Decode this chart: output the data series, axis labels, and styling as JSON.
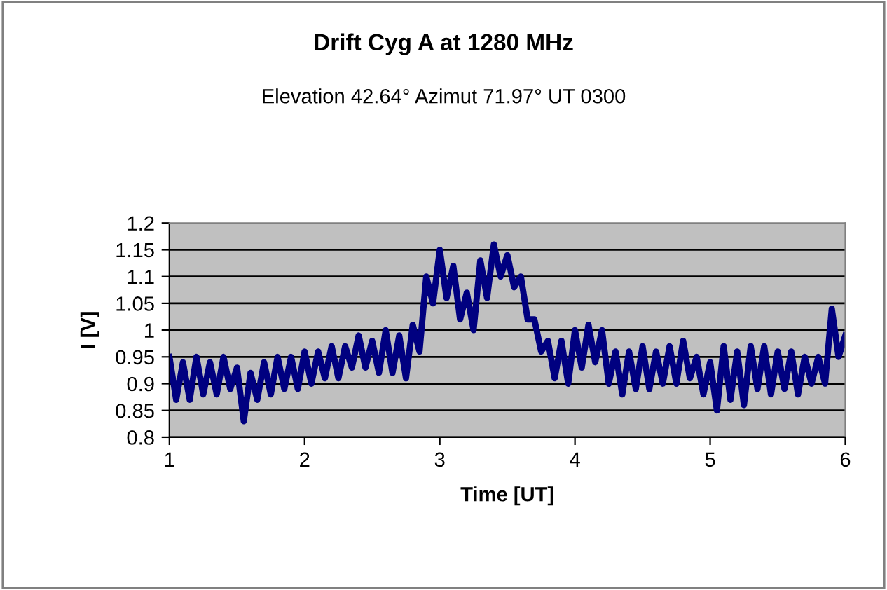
{
  "chart_data": {
    "type": "line",
    "title": "Drift Cyg A at 1280 MHz",
    "subtitle": "Elevation 42.64° Azimut 71.97° UT 0300",
    "xlabel": "Time [UT]",
    "ylabel": "I [V]",
    "x": [
      1.0,
      1.05,
      1.1,
      1.15,
      1.2,
      1.25,
      1.3,
      1.35,
      1.4,
      1.45,
      1.5,
      1.55,
      1.6,
      1.65,
      1.7,
      1.75,
      1.8,
      1.85,
      1.9,
      1.95,
      2.0,
      2.05,
      2.1,
      2.15,
      2.2,
      2.25,
      2.3,
      2.35,
      2.4,
      2.45,
      2.5,
      2.55,
      2.6,
      2.65,
      2.7,
      2.75,
      2.8,
      2.85,
      2.9,
      2.95,
      3.0,
      3.05,
      3.1,
      3.15,
      3.2,
      3.25,
      3.3,
      3.35,
      3.4,
      3.45,
      3.5,
      3.55,
      3.6,
      3.65,
      3.7,
      3.75,
      3.8,
      3.85,
      3.9,
      3.95,
      4.0,
      4.05,
      4.1,
      4.15,
      4.2,
      4.25,
      4.3,
      4.35,
      4.4,
      4.45,
      4.5,
      4.55,
      4.6,
      4.65,
      4.7,
      4.75,
      4.8,
      4.85,
      4.9,
      4.95,
      5.0,
      5.05,
      5.1,
      5.15,
      5.2,
      5.25,
      5.3,
      5.35,
      5.4,
      5.45,
      5.5,
      5.55,
      5.6,
      5.65,
      5.7,
      5.75,
      5.8,
      5.85,
      5.9,
      5.95,
      6.0
    ],
    "series": [
      {
        "color": "#000080",
        "values": [
          0.95,
          0.87,
          0.94,
          0.87,
          0.95,
          0.88,
          0.94,
          0.88,
          0.95,
          0.89,
          0.93,
          0.83,
          0.92,
          0.87,
          0.94,
          0.88,
          0.95,
          0.89,
          0.95,
          0.89,
          0.96,
          0.9,
          0.96,
          0.91,
          0.97,
          0.91,
          0.97,
          0.93,
          0.99,
          0.93,
          0.98,
          0.92,
          1.0,
          0.92,
          0.99,
          0.91,
          1.01,
          0.96,
          1.1,
          1.05,
          1.15,
          1.06,
          1.12,
          1.02,
          1.07,
          1.0,
          1.13,
          1.06,
          1.16,
          1.1,
          1.14,
          1.08,
          1.1,
          1.02,
          1.02,
          0.96,
          0.98,
          0.91,
          0.98,
          0.9,
          1.0,
          0.93,
          1.01,
          0.94,
          1.0,
          0.9,
          0.96,
          0.88,
          0.96,
          0.89,
          0.97,
          0.89,
          0.96,
          0.9,
          0.97,
          0.9,
          0.98,
          0.91,
          0.95,
          0.88,
          0.94,
          0.85,
          0.97,
          0.87,
          0.96,
          0.86,
          0.97,
          0.89,
          0.97,
          0.88,
          0.96,
          0.89,
          0.96,
          0.88,
          0.95,
          0.9,
          0.95,
          0.9,
          1.04,
          0.95,
          0.99
        ]
      }
    ],
    "xlim": [
      1,
      6
    ],
    "xticks": [
      1,
      2,
      3,
      4,
      5,
      6
    ],
    "ylim": [
      0.8,
      1.2
    ],
    "yticks": [
      0.8,
      0.85,
      0.9,
      0.95,
      1,
      1.05,
      1.1,
      1.15,
      1.2
    ],
    "grid": "y",
    "legend": false,
    "marker": "none",
    "line_style": "solid"
  }
}
